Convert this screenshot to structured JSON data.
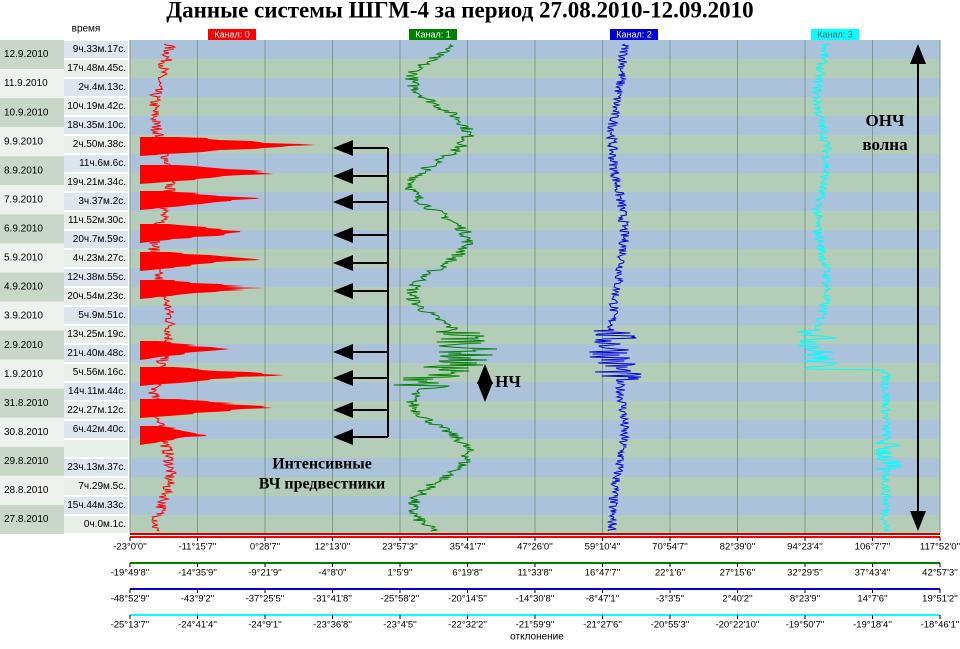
{
  "header": {
    "title": "Данные системы ШГМ-4 за период 27.08.2010-12.09.2010",
    "y_label": "время"
  },
  "rows": {
    "dates": [
      "12.9.2010",
      "11.9.2010",
      "10.9.2010",
      "9.9.2010",
      "8.9.2010",
      "7.9.2010",
      "6.9.2010",
      "5.9.2010",
      "4.9.2010",
      "3.9.2010",
      "2.9.2010",
      "1.9.2010",
      "31.8.2010",
      "30.8.2010",
      "29.8.2010",
      "28.8.2010",
      "27.8.2010"
    ],
    "times": [
      "9ч.33м.17с.",
      "17ч.48м.45с.",
      "2ч.4м.13с.",
      "10ч.19м.42с.",
      "18ч.35м.10с.",
      "2ч.50м.38с.",
      "11ч.6м.6с.",
      "19ч.21м.34с.",
      "3ч.37м.2с.",
      "11ч.52м.30с.",
      "20ч.7м.59с.",
      "4ч.23м.27с.",
      "12ч.38м.55с.",
      "20ч.54м.23с.",
      "5ч.9м.51с.",
      "13ч.25м.19с.",
      "21ч.40м.48с.",
      "5ч.56м.16с.",
      "14ч.11м.44с.",
      "22ч.27м.12с.",
      "6ч.42м.40с.",
      null,
      "23ч.13м.37с.",
      "7ч.29м.5с.",
      "15ч.44м.33с.",
      "0ч.0м.1с."
    ]
  },
  "channels": [
    {
      "name": "Канал: 0",
      "color": "#ff0000"
    },
    {
      "name": "Канал: 1",
      "color": "#008000"
    },
    {
      "name": "Канал: 2",
      "color": "#0000dd"
    },
    {
      "name": "Канал: 3",
      "color": "#00ffff"
    }
  ],
  "axes": [
    [
      "-23°0'0''",
      "-11°15'7''",
      "0°28'7''",
      "12°13'0''",
      "23°57'3''",
      "35°41'7''",
      "47°26'0''",
      "59°10'4''",
      "70°54'7''",
      "82°39'0''",
      "94°23'4''",
      "106°7'7''",
      "117°52'0''"
    ],
    [
      "-19°49'8''",
      "-14°35'9''",
      "-9°21'9''",
      "-4°8'0''",
      "1°5'9''",
      "6°19'8''",
      "11°33'8''",
      "16°47'7''",
      "22°1'6''",
      "27°15'6''",
      "32°29'5''",
      "37°43'4''",
      "42°57'3''"
    ],
    [
      "-48°52'9''",
      "-43°9'2''",
      "-37°25'5''",
      "-31°41'8''",
      "-25°58'2''",
      "-20°14'5''",
      "-14°30'8''",
      "-8°47'1''",
      "-3°3'5''",
      "2°40'2''",
      "8°23'9''",
      "14°7'6''",
      "19°51'2''"
    ],
    [
      "-25°13'7''",
      "-24°41'4''",
      "-24°9'1''",
      "-23°36'8''",
      "-23°4'5''",
      "-22°32'2''",
      "-21°59'9''",
      "-21°27'6''",
      "-20°55'3''",
      "-20°22'10''",
      "-19°50'7''",
      "-19°18'4''",
      "-18°46'1''"
    ]
  ],
  "x_label": "отклонение",
  "annotations": {
    "vlf": [
      "ОНЧ",
      "волна"
    ],
    "lf": "НЧ",
    "hf": [
      "Интенсивные",
      "ВЧ предвестники"
    ]
  }
}
